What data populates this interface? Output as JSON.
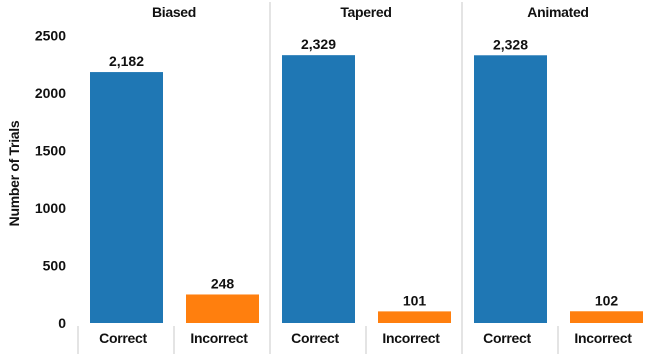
{
  "chart_data": {
    "type": "bar",
    "ylabel": "Number of Trials",
    "ylim": [
      0,
      2600
    ],
    "yticks": [
      0,
      500,
      1000,
      1500,
      2000,
      2500
    ],
    "yticks_text": [
      "0",
      "500",
      "1000",
      "1500",
      "2000",
      "2500"
    ],
    "grid": false,
    "legend": "none",
    "categories": [
      "Correct",
      "Incorrect"
    ],
    "colors": {
      "Correct": "#1f77b4",
      "Incorrect": "#ff7f0e"
    },
    "panels": [
      {
        "title": "Biased",
        "values": [
          2182,
          248
        ],
        "labels": [
          "2,182",
          "248"
        ]
      },
      {
        "title": "Tapered",
        "values": [
          2329,
          101
        ],
        "labels": [
          "2,329",
          "101"
        ]
      },
      {
        "title": "Animated",
        "values": [
          2328,
          102
        ],
        "labels": [
          "2,328",
          "102"
        ]
      }
    ]
  }
}
